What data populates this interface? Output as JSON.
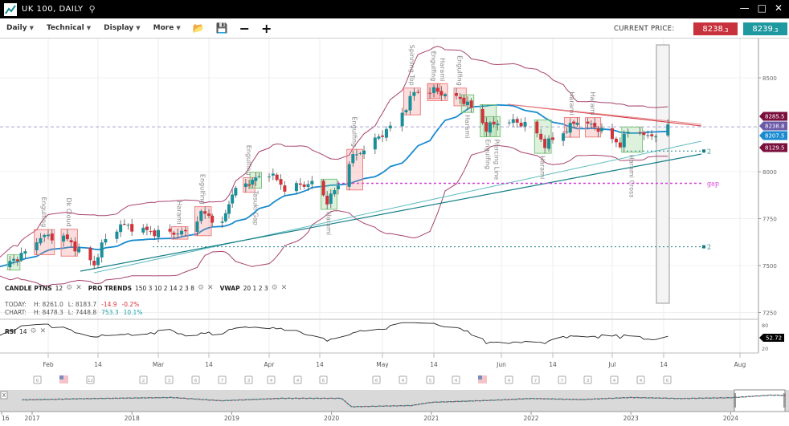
{
  "window": {
    "title": "UK 100, DAILY",
    "icons": [
      "chart-logo-icon",
      "search-icon",
      "minimize-icon",
      "maximize-icon",
      "close-icon"
    ]
  },
  "toolbar": {
    "menus": [
      {
        "label": "Daily"
      },
      {
        "label": "Technical"
      },
      {
        "label": "Display"
      },
      {
        "label": "More"
      }
    ],
    "icons": [
      "open-folder-icon",
      "save-icon",
      "zoom-out-icon",
      "zoom-in-icon"
    ],
    "current_price_label": "CURRENT PRICE:",
    "sell_price": "8238",
    "sell_decimal": ".3",
    "buy_price": "8239",
    "buy_decimal": ".3"
  },
  "indicators": {
    "candle": {
      "name": "CANDLE PTNS",
      "params": "12"
    },
    "pro_trends": {
      "name": "PRO TRENDS",
      "params": "150 3 10 2 14 2 3 8"
    },
    "vwap": {
      "name": "VWAP",
      "params": "20 1 2 3"
    },
    "rsi": {
      "name": "RSI",
      "params": "14",
      "value": "52.72",
      "levels": [
        "80",
        "20"
      ]
    }
  },
  "stats": {
    "today": {
      "label": "TODAY:",
      "high": "H: 8261.0",
      "low": "L: 8183.7",
      "change": "-14.9",
      "pct": "-0.2%"
    },
    "chart": {
      "label": "CHART:",
      "high": "H: 8478.3",
      "low": "L: 7448.8",
      "change": "753.3",
      "pct": "10.1%"
    }
  },
  "colors": {
    "up": "#1a8f99",
    "down": "#d0323a",
    "ma": "#1a8bd0",
    "bands": "#a8436e",
    "sell": "#c8323c",
    "buy": "#1f99a0"
  },
  "chart_data": {
    "type": "candlestick",
    "y_axis": {
      "ticks": [
        "8500",
        "8000",
        "7750",
        "7500",
        "7250"
      ],
      "range": [
        7250,
        8500
      ]
    },
    "x_axis": {
      "ticks": [
        {
          "label": "Feb",
          "date": "2024-02-01"
        },
        {
          "label": "14",
          "date": "2024-02-14"
        },
        {
          "label": "Mar",
          "date": "2024-03-01"
        },
        {
          "label": "14",
          "date": "2024-03-14"
        },
        {
          "label": "Apr",
          "date": "2024-04-01"
        },
        {
          "label": "14",
          "date": "2024-04-14"
        },
        {
          "label": "May",
          "date": "2024-05-01"
        },
        {
          "label": "14",
          "date": "2024-05-14"
        },
        {
          "label": "Jun",
          "date": "2024-06-01"
        },
        {
          "label": "14",
          "date": "2024-06-14"
        },
        {
          "label": "Jul",
          "date": "2024-07-01"
        },
        {
          "label": "14",
          "date": "2024-07-14"
        },
        {
          "label": "Aug",
          "date": "2024-08-01"
        }
      ]
    },
    "close_path": [
      [
        "2024-01-19",
        7483
      ],
      [
        "2024-01-26",
        7568
      ],
      [
        "2024-01-30",
        7654
      ],
      [
        "2024-02-05",
        7654
      ],
      [
        "2024-02-13",
        7504
      ],
      [
        "2024-02-15",
        7611
      ],
      [
        "2024-02-20",
        7718
      ],
      [
        "2024-02-29",
        7675
      ],
      [
        "2024-03-08",
        7675
      ],
      [
        "2024-03-12",
        7782
      ],
      [
        "2024-03-18",
        7718
      ],
      [
        "2024-03-21",
        7889
      ],
      [
        "2024-03-27",
        7953
      ],
      [
        "2024-04-01",
        7996
      ],
      [
        "2024-04-05",
        7910
      ],
      [
        "2024-04-12",
        7940
      ],
      [
        "2024-04-16",
        7846
      ],
      [
        "2024-04-19",
        7923
      ],
      [
        "2024-04-22",
        8060
      ],
      [
        "2024-04-29",
        8167
      ],
      [
        "2024-05-05",
        8274
      ],
      [
        "2024-05-09",
        8423
      ],
      [
        "2024-05-14",
        8432
      ],
      [
        "2024-05-22",
        8380
      ],
      [
        "2024-05-25",
        8316
      ],
      [
        "2024-05-28",
        8231
      ],
      [
        "2024-06-01",
        8274
      ],
      [
        "2024-06-08",
        8252
      ],
      [
        "2024-06-12",
        8145
      ],
      [
        "2024-06-17",
        8209
      ],
      [
        "2024-06-21",
        8274
      ],
      [
        "2024-06-27",
        8231
      ],
      [
        "2024-07-03",
        8145
      ],
      [
        "2024-07-06",
        8252
      ],
      [
        "2024-07-10",
        8180
      ],
      [
        "2024-07-15",
        8239
      ]
    ],
    "price_tags": [
      {
        "value": "8285.5",
        "color": "#7a0f3c"
      },
      {
        "value": "8238.8",
        "color": "#6a5aa8"
      },
      {
        "value": "8207.5",
        "color": "#1a8bd0"
      },
      {
        "value": "8129.5",
        "color": "#7a0f3c"
      }
    ],
    "patterns": [
      {
        "date": "2024-01-22",
        "label": "",
        "kind": "bull"
      },
      {
        "date": "2024-01-31",
        "label": "Engulfing",
        "kind": "bear"
      },
      {
        "date": "2024-02-06",
        "label": "Dk Cloud",
        "kind": "bear"
      },
      {
        "date": "2024-03-07",
        "label": "Harami",
        "kind": "bear"
      },
      {
        "date": "2024-03-12",
        "label": "Engulfing",
        "kind": "bear"
      },
      {
        "date": "2024-03-25",
        "label": "Engulfing",
        "kind": "bear"
      },
      {
        "date": "2024-03-29",
        "label": "Tasuki Gap",
        "kind": "bull"
      },
      {
        "date": "2024-04-16",
        "label": "Harami",
        "kind": "bull"
      },
      {
        "date": "2024-04-23",
        "label": "Engulfing",
        "kind": "bear"
      },
      {
        "date": "2024-05-09",
        "label": "Spinning Top",
        "kind": "bear"
      },
      {
        "date": "2024-05-13",
        "label": "Engulfing",
        "kind": "bear"
      },
      {
        "date": "2024-05-15",
        "label": "Harami",
        "kind": "bear"
      },
      {
        "date": "2024-05-20",
        "label": "Engulfing",
        "kind": "bear"
      },
      {
        "date": "2024-05-24",
        "label": "Harami",
        "kind": "bull"
      },
      {
        "date": "2024-05-28",
        "label": "Engulfing",
        "kind": "bull"
      },
      {
        "date": "2024-05-30",
        "label": "Piercing Line",
        "kind": "bull"
      },
      {
        "date": "2024-06-11",
        "label": "Harami",
        "kind": "bull"
      },
      {
        "date": "2024-06-20",
        "label": "Harami",
        "kind": "bear"
      },
      {
        "date": "2024-06-25",
        "label": "Harami",
        "kind": "bear"
      },
      {
        "date": "2024-07-06",
        "label": "Harami Cross",
        "kind": "bull"
      }
    ],
    "levels": [
      {
        "label": "2",
        "value": 8110
      },
      {
        "label": "2",
        "value": 7600
      },
      {
        "label": "gap",
        "value": 7938
      }
    ],
    "current_price": 8238.8
  },
  "events": {
    "markers": [
      "6",
      "flag",
      "12",
      "2",
      "3",
      "6",
      "7",
      "3",
      "4",
      "4",
      "6",
      "6",
      "4",
      "5",
      "4",
      "flag",
      "4",
      "7",
      "7",
      "3",
      "4",
      "4",
      "6"
    ]
  },
  "navigator": {
    "years": [
      "16",
      "2017",
      "2018",
      "2019",
      "2020",
      "2021",
      "2022",
      "2023",
      "2024"
    ],
    "path": [
      [
        2016.9,
        7100
      ],
      [
        2017.5,
        7400
      ],
      [
        2018.4,
        7700
      ],
      [
        2018.9,
        6900
      ],
      [
        2019.5,
        7500
      ],
      [
        2020.1,
        7500
      ],
      [
        2020.2,
        5400
      ],
      [
        2020.8,
        5700
      ],
      [
        2021.0,
        6500
      ],
      [
        2021.6,
        7000
      ],
      [
        2022.0,
        7450
      ],
      [
        2022.5,
        7200
      ],
      [
        2023.0,
        7700
      ],
      [
        2023.5,
        7450
      ],
      [
        2024.0,
        7650
      ],
      [
        2024.4,
        8300
      ],
      [
        2024.55,
        8240
      ]
    ],
    "close_label": "X"
  }
}
